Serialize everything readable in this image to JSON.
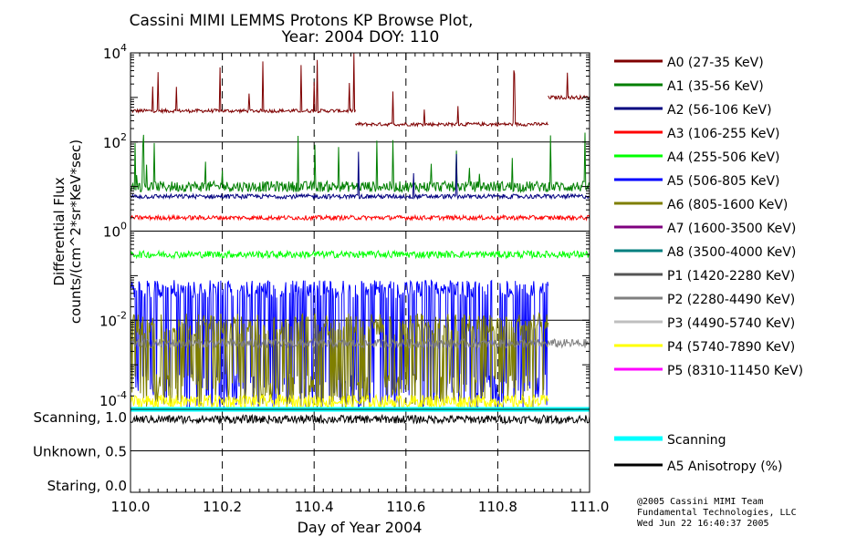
{
  "chart_data": {
    "type": "line",
    "title": "Cassini MIMI LEMMS Protons KP Browse Plot,",
    "subtitle": "Year: 2004 DOY: 110",
    "xlabel": "Day of Year 2004",
    "ylabel_line1": "Differential Flux",
    "ylabel_line2": "counts/(cm^2*sr*KeV*sec)",
    "xlim": [
      110.0,
      111.0
    ],
    "x_ticks": [
      "110.0",
      "110.2",
      "110.4",
      "110.6",
      "110.8",
      "111.0"
    ],
    "x_tick_values": [
      110.0,
      110.2,
      110.4,
      110.6,
      110.8,
      111.0
    ],
    "ylim_log": [
      -4,
      4
    ],
    "y_ticks": [
      {
        "base": "10",
        "exp": "4",
        "value": 4
      },
      {
        "base": "10",
        "exp": "2",
        "value": 2
      },
      {
        "base": "10",
        "exp": "0",
        "value": 0
      },
      {
        "base": "10",
        "exp": "-2",
        "value": -2
      },
      {
        "base": "10",
        "exp": "-4",
        "value": -4
      }
    ],
    "grid": true,
    "legend_position": "right",
    "series": [
      {
        "name": "A0 (27-35 KeV)",
        "color": "#7f0000",
        "segments": [
          [
            110.0,
            110.49,
            500
          ],
          [
            110.49,
            110.91,
            250
          ],
          [
            110.91,
            111.0,
            1000
          ]
        ],
        "noise": 0.04,
        "spikes": 0.03
      },
      {
        "name": "A1 (35-56 KeV)",
        "color": "#007f00",
        "segments": [
          [
            110.0,
            111.0,
            10
          ]
        ],
        "noise": 0.12,
        "spikes": 0.04
      },
      {
        "name": "A2 (56-106 KeV)",
        "color": "#00007f",
        "segments": [
          [
            110.0,
            111.0,
            6
          ]
        ],
        "noise": 0.05,
        "spikes": 0.005
      },
      {
        "name": "A3 (106-255 KeV)",
        "color": "#ff0000",
        "segments": [
          [
            110.0,
            111.0,
            2
          ]
        ],
        "noise": 0.05,
        "spikes": 0.0
      },
      {
        "name": "A4 (255-506 KeV)",
        "color": "#00ff00",
        "segments": [
          [
            110.0,
            111.0,
            0.3
          ]
        ],
        "noise": 0.08,
        "spikes": 0.0
      },
      {
        "name": "A5 (506-805 KeV)",
        "color": "#0000ff",
        "segments": [
          [
            110.0,
            110.91,
            0.05
          ]
        ],
        "noise": 0.2,
        "spikes": 0.0,
        "dropouts": 0.35
      },
      {
        "name": "A6 (805-1600 KeV)",
        "color": "#7f7f00",
        "segments": [
          [
            110.0,
            110.91,
            0.008
          ]
        ],
        "noise": 0.25,
        "spikes": 0.0,
        "dropouts": 0.4
      },
      {
        "name": "A7 (1600-3500 KeV)",
        "color": "#7f007f",
        "segments": [],
        "noise": 0,
        "spikes": 0
      },
      {
        "name": "A8 (3500-4000 KeV)",
        "color": "#007f7f",
        "segments": [],
        "noise": 0,
        "spikes": 0
      },
      {
        "name": "P1 (1420-2280 KeV)",
        "color": "#555555",
        "segments": [],
        "noise": 0,
        "spikes": 0
      },
      {
        "name": "P2 (2280-4490 KeV)",
        "color": "#7f7f7f",
        "segments": [
          [
            110.0,
            111.0,
            0.003
          ]
        ],
        "noise": 0.1,
        "spikes": 0.0
      },
      {
        "name": "P3 (4490-5740 KeV)",
        "color": "#bfbfbf",
        "segments": [],
        "noise": 0,
        "spikes": 0
      },
      {
        "name": "P4 (5740-7890 KeV)",
        "color": "#ffff00",
        "segments": [
          [
            110.0,
            110.91,
            0.00015
          ]
        ],
        "noise": 0.15,
        "spikes": 0.0
      },
      {
        "name": "P5 (8310-11450 KeV)",
        "color": "#ff00ff",
        "segments": [],
        "noise": 0,
        "spikes": 0
      }
    ],
    "lower_panel": {
      "y_labels": [
        {
          "label": "Scanning, 1.0",
          "value": 1.0
        },
        {
          "label": "Unknown, 0.5",
          "value": 0.5
        },
        {
          "label": "Staring, 0.0",
          "value": 0.0
        }
      ],
      "series": [
        {
          "name": "Scanning",
          "color": "#00ffff",
          "value": 1.0,
          "noise": 0
        },
        {
          "name": "A5 Anisotropy (%)",
          "color": "#000000",
          "value": 0.88,
          "noise": 0.05
        }
      ]
    }
  },
  "footer": {
    "line1": "@2005 Cassini MIMI Team",
    "line2": "Fundamental Technologies, LLC",
    "line3": "Wed Jun 22 16:40:37 2005"
  }
}
